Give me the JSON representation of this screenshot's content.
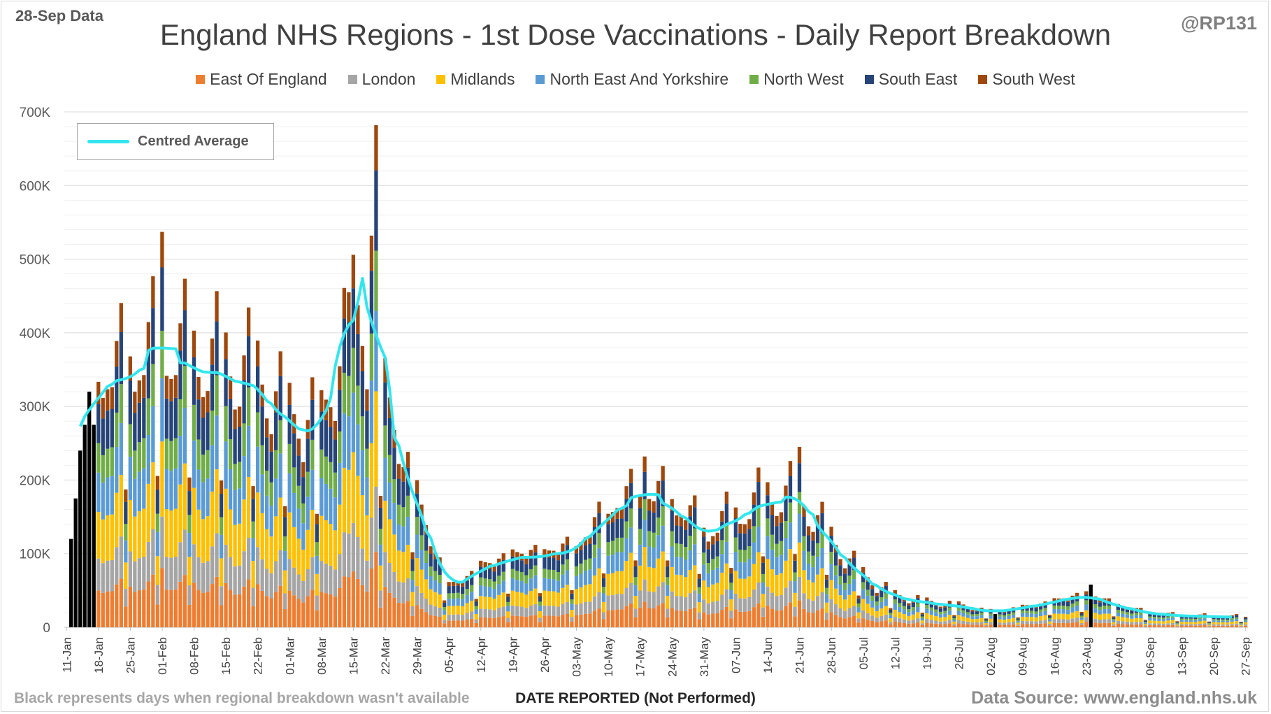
{
  "header": {
    "data_date": "28-Sep Data",
    "handle": "@RP131",
    "title": "England NHS Regions - 1st Dose Vaccinations - Daily Report Breakdown"
  },
  "footer": {
    "note": "Black represents days when regional breakdown wasn't available",
    "source": "Data Source: www.england.nhs.uk"
  },
  "average_legend": "Centred Average",
  "chart_data": {
    "type": "bar",
    "stacked": true,
    "xlabel": "DATE REPORTED (Not Performed)",
    "ylabel": "",
    "ylim": [
      0,
      700000
    ],
    "y_ticks": [
      "0",
      "100K",
      "200K",
      "300K",
      "400K",
      "500K",
      "600K",
      "700K"
    ],
    "grid": true,
    "legend_position": "top",
    "x_ticks": [
      "11-Jan",
      "18-Jan",
      "25-Jan",
      "01-Feb",
      "08-Feb",
      "15-Feb",
      "22-Feb",
      "01-Mar",
      "08-Mar",
      "15-Mar",
      "22-Mar",
      "29-Mar",
      "05-Apr",
      "12-Apr",
      "19-Apr",
      "26-Apr",
      "03-May",
      "10-May",
      "17-May",
      "24-May",
      "31-May",
      "07-Jun",
      "14-Jun",
      "21-Jun",
      "28-Jun",
      "05-Jul",
      "12-Jul",
      "19-Jul",
      "26-Jul",
      "02-Aug",
      "09-Aug",
      "16-Aug",
      "23-Aug",
      "30-Aug",
      "06-Sep",
      "13-Sep",
      "20-Sep",
      "27-Sep"
    ],
    "series": [
      {
        "name": "East Of England",
        "color": "#ed7d31",
        "share": 0.15
      },
      {
        "name": "London",
        "color": "#a5a5a5",
        "share": 0.13
      },
      {
        "name": "Midlands",
        "color": "#ffc000",
        "share": 0.19
      },
      {
        "name": "North East And Yorkshire",
        "color": "#5b9bd5",
        "share": 0.16
      },
      {
        "name": "North West",
        "color": "#70ad47",
        "share": 0.12
      },
      {
        "name": "South East",
        "color": "#264478",
        "share": 0.16
      },
      {
        "name": "South West",
        "color": "#9e480e",
        "share": 0.09
      }
    ],
    "unallocated_color": "#000000",
    "average_color": "#33e6ee",
    "weekly_levels": [
      {
        "week": "11-Jan",
        "level": 230000
      },
      {
        "week": "18-Jan",
        "level": 310000
      },
      {
        "week": "25-Jan",
        "level": 330000
      },
      {
        "week": "01-Feb",
        "level": 355000
      },
      {
        "week": "08-Feb",
        "level": 340000
      },
      {
        "week": "15-Feb",
        "level": 330000
      },
      {
        "week": "22-Feb",
        "level": 315000
      },
      {
        "week": "01-Mar",
        "level": 265000
      },
      {
        "week": "08-Mar",
        "level": 255000
      },
      {
        "week": "15-Mar",
        "level": 400000
      },
      {
        "week": "22-Mar",
        "level": 290000
      },
      {
        "week": "29-Mar",
        "level": 160000
      },
      {
        "week": "05-Apr",
        "level": 50000
      },
      {
        "week": "12-Apr",
        "level": 75000
      },
      {
        "week": "19-Apr",
        "level": 90000
      },
      {
        "week": "26-Apr",
        "level": 93000
      },
      {
        "week": "03-May",
        "level": 100000
      },
      {
        "week": "10-May",
        "level": 145000
      },
      {
        "week": "17-May",
        "level": 170000
      },
      {
        "week": "24-May",
        "level": 160000
      },
      {
        "week": "31-May",
        "level": 120000
      },
      {
        "week": "07-Jun",
        "level": 140000
      },
      {
        "week": "14-Jun",
        "level": 165000
      },
      {
        "week": "21-Jun",
        "level": 165000
      },
      {
        "week": "28-Jun",
        "level": 110000
      },
      {
        "week": "05-Jul",
        "level": 65000
      },
      {
        "week": "12-Jul",
        "level": 40000
      },
      {
        "week": "19-Jul",
        "level": 32000
      },
      {
        "week": "26-Jul",
        "level": 28000
      },
      {
        "week": "02-Aug",
        "level": 20000
      },
      {
        "week": "09-Aug",
        "level": 25000
      },
      {
        "week": "16-Aug",
        "level": 33000
      },
      {
        "week": "23-Aug",
        "level": 42000
      },
      {
        "week": "30-Aug",
        "level": 28000
      },
      {
        "week": "06-Sep",
        "level": 18000
      },
      {
        "week": "13-Sep",
        "level": 15000
      },
      {
        "week": "20-Sep",
        "level": 14000
      },
      {
        "week": "27-Sep",
        "level": 13000
      }
    ],
    "unallocated_days": [
      {
        "date": "11-Jan",
        "value": 120000
      },
      {
        "date": "12-Jan",
        "value": 175000
      },
      {
        "date": "13-Jan",
        "value": 240000
      },
      {
        "date": "14-Jan",
        "value": 275000
      },
      {
        "date": "15-Jan",
        "value": 320000
      },
      {
        "date": "16-Jan",
        "value": 275000
      },
      {
        "date": "02-Aug",
        "value": 18000
      },
      {
        "date": "23-Aug",
        "value": 58000
      }
    ],
    "notable_peaks": [
      {
        "date": "19-Mar",
        "value": 682000
      },
      {
        "date": "18-Mar",
        "value": 532000
      },
      {
        "date": "31-Jan",
        "value": 537000
      },
      {
        "date": "13-Mar",
        "value": 455000
      },
      {
        "date": "20-Jun",
        "value": 245000
      },
      {
        "date": "17-May",
        "value": 232000
      }
    ]
  }
}
